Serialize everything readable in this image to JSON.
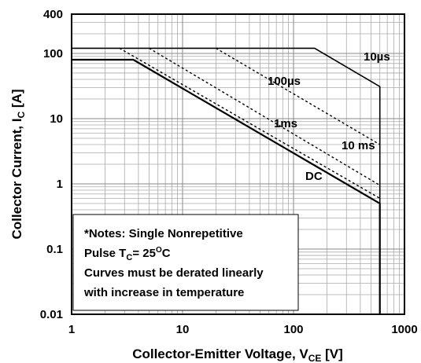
{
  "chart_data": {
    "type": "line",
    "xlabel": [
      "Collector-Emitter Voltage, V",
      "CE",
      " [V]"
    ],
    "ylabel": [
      "Collector Current, I",
      "C",
      " [A]"
    ],
    "xscale": "log",
    "yscale": "log",
    "xlim": [
      1,
      1000
    ],
    "ylim": [
      0.01,
      400
    ],
    "xticks": [
      1,
      10,
      100,
      1000
    ],
    "yticks": [
      0.01,
      0.1,
      1,
      10,
      100,
      400
    ],
    "grid": true,
    "series": [
      {
        "name": "10µs",
        "color": "#000000",
        "style": "solid",
        "x": [
          1,
          155,
          600,
          600
        ],
        "values": [
          120,
          120,
          31,
          0.01
        ]
      },
      {
        "name": "100µs",
        "color": "#000000",
        "style": "dashed",
        "x": [
          20,
          600
        ],
        "values": [
          120,
          4
        ]
      },
      {
        "name": "1ms",
        "color": "#000000",
        "style": "dashed",
        "x": [
          5,
          600
        ],
        "values": [
          120,
          0.95
        ]
      },
      {
        "name": "10 ms",
        "color": "#000000",
        "style": "dashed",
        "x": [
          2.7,
          600
        ],
        "values": [
          120,
          0.6
        ]
      },
      {
        "name": "DC",
        "color": "#000000",
        "style": "solid",
        "x": [
          1,
          3.6,
          600,
          600
        ],
        "values": [
          80,
          80,
          0.5,
          0.01
        ]
      }
    ],
    "notes": [
      [
        "*Notes: Single Nonrepetitive"
      ],
      [
        "Pulse T",
        "C",
        "= 25",
        "O",
        "C"
      ],
      [
        "Curves must be derated linearly"
      ],
      [
        " with increase in temperature"
      ]
    ]
  }
}
